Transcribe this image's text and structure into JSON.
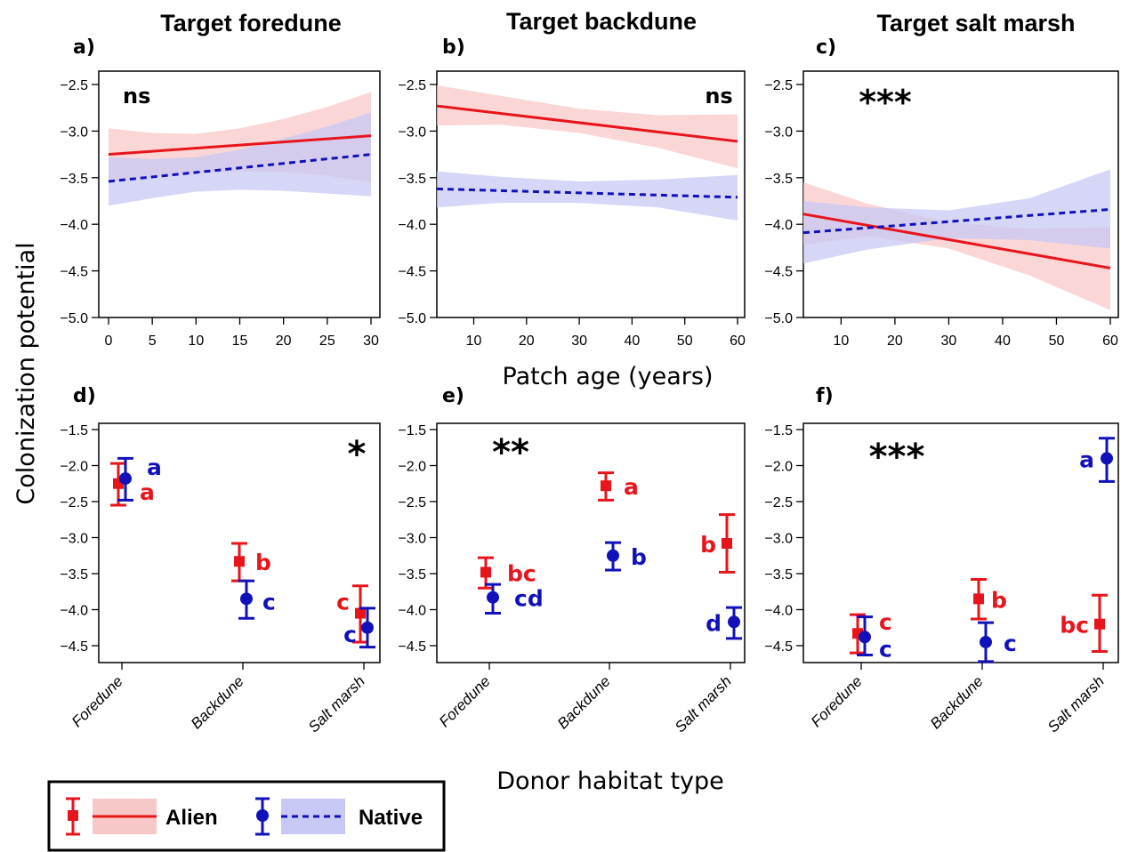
{
  "colors": {
    "alien": "#e8141b",
    "native": "#1111bb",
    "alien_band": "#f8c8c8",
    "native_band": "#c8c8f4"
  },
  "axis_labels": {
    "y": "Colonization potential",
    "x_top": "Patch age (years)",
    "x_bottom": "Donor habitat type"
  },
  "legend": {
    "alien": "Alien",
    "native": "Native"
  },
  "chart_data": [
    {
      "id": "a",
      "panel_label": "a)",
      "type": "line",
      "title": "Target foredune",
      "significance": "ns",
      "xlim": [
        0,
        30
      ],
      "ylim": [
        -5.0,
        -2.5
      ],
      "xticks": [
        0,
        5,
        10,
        15,
        20,
        25,
        30
      ],
      "yticks": [
        -2.5,
        -3.0,
        -3.5,
        -4.0,
        -4.5,
        -5.0
      ],
      "series": [
        {
          "name": "Alien",
          "x": [
            0,
            30
          ],
          "y": [
            -3.25,
            -3.05
          ],
          "band_x": [
            0,
            5,
            10,
            15,
            20,
            25,
            30
          ],
          "band_upper": [
            -2.97,
            -3.02,
            -3.03,
            -2.97,
            -2.87,
            -2.74,
            -2.58
          ],
          "band_lower": [
            -3.55,
            -3.5,
            -3.45,
            -3.43,
            -3.44,
            -3.48,
            -3.55
          ]
        },
        {
          "name": "Native",
          "x": [
            0,
            30
          ],
          "y": [
            -3.54,
            -3.25
          ],
          "band_x": [
            0,
            5,
            10,
            15,
            20,
            25,
            30
          ],
          "band_upper": [
            -3.28,
            -3.3,
            -3.28,
            -3.2,
            -3.08,
            -2.95,
            -2.8
          ],
          "band_lower": [
            -3.8,
            -3.72,
            -3.65,
            -3.63,
            -3.64,
            -3.67,
            -3.7
          ]
        }
      ]
    },
    {
      "id": "b",
      "panel_label": "b)",
      "type": "line",
      "title": "Target backdune",
      "significance": "ns",
      "xlim": [
        3,
        60
      ],
      "ylim": [
        -5.0,
        -2.5
      ],
      "xticks": [
        10,
        20,
        30,
        40,
        50,
        60
      ],
      "yticks": [
        -2.5,
        -3.0,
        -3.5,
        -4.0,
        -4.5,
        -5.0
      ],
      "series": [
        {
          "name": "Alien",
          "x": [
            3,
            60
          ],
          "y": [
            -2.73,
            -3.11
          ],
          "band_x": [
            3,
            15,
            30,
            45,
            60
          ],
          "band_upper": [
            -2.51,
            -2.62,
            -2.76,
            -2.83,
            -2.82
          ],
          "band_lower": [
            -2.94,
            -2.93,
            -3.02,
            -3.18,
            -3.4
          ]
        },
        {
          "name": "Native",
          "x": [
            3,
            60
          ],
          "y": [
            -3.62,
            -3.71
          ],
          "band_x": [
            3,
            15,
            30,
            45,
            60
          ],
          "band_upper": [
            -3.43,
            -3.49,
            -3.54,
            -3.52,
            -3.47
          ],
          "band_lower": [
            -3.82,
            -3.77,
            -3.77,
            -3.82,
            -3.96
          ]
        }
      ]
    },
    {
      "id": "c",
      "panel_label": "c)",
      "type": "line",
      "title": "Target salt marsh",
      "significance": "***",
      "xlim": [
        3,
        60
      ],
      "ylim": [
        -5.0,
        -2.5
      ],
      "xticks": [
        10,
        20,
        30,
        40,
        50,
        60
      ],
      "yticks": [
        -2.5,
        -3.0,
        -3.5,
        -4.0,
        -4.5,
        -5.0
      ],
      "series": [
        {
          "name": "Alien",
          "x": [
            3,
            60
          ],
          "y": [
            -3.89,
            -4.47
          ],
          "band_x": [
            3,
            15,
            30,
            45,
            60
          ],
          "band_upper": [
            -3.55,
            -3.78,
            -3.98,
            -4.05,
            -4.03
          ],
          "band_lower": [
            -4.22,
            -4.13,
            -4.26,
            -4.55,
            -4.92
          ]
        },
        {
          "name": "Native",
          "x": [
            3,
            60
          ],
          "y": [
            -4.09,
            -3.84
          ],
          "band_x": [
            3,
            15,
            30,
            45,
            60
          ],
          "band_upper": [
            -3.75,
            -3.82,
            -3.85,
            -3.72,
            -3.41
          ],
          "band_lower": [
            -4.42,
            -4.27,
            -4.15,
            -4.17,
            -4.26
          ]
        }
      ]
    },
    {
      "id": "d",
      "panel_label": "d)",
      "type": "scatter",
      "significance": "*",
      "categories": [
        "Foredune",
        "Backdune",
        "Salt marsh"
      ],
      "ylim": [
        -4.75,
        -1.5
      ],
      "yticks": [
        -1.5,
        -2.0,
        -2.5,
        -3.0,
        -3.5,
        -4.0,
        -4.5
      ],
      "series": [
        {
          "name": "Alien",
          "values": [
            -2.25,
            -3.33,
            -4.05
          ],
          "lower": [
            -2.55,
            -3.6,
            -4.45
          ],
          "upper": [
            -1.97,
            -3.08,
            -3.67
          ],
          "letters": [
            "a",
            "b",
            "c"
          ]
        },
        {
          "name": "Native",
          "values": [
            -2.18,
            -3.85,
            -4.25
          ],
          "lower": [
            -2.48,
            -4.12,
            -4.52
          ],
          "upper": [
            -1.9,
            -3.6,
            -3.98
          ],
          "letters": [
            "a",
            "c",
            "c"
          ]
        }
      ]
    },
    {
      "id": "e",
      "panel_label": "e)",
      "type": "scatter",
      "significance": "**",
      "categories": [
        "Foredune",
        "Backdune",
        "Salt marsh"
      ],
      "ylim": [
        -4.75,
        -1.5
      ],
      "yticks": [
        -1.5,
        -2.0,
        -2.5,
        -3.0,
        -3.5,
        -4.0,
        -4.5
      ],
      "series": [
        {
          "name": "Alien",
          "values": [
            -3.48,
            -2.28,
            -3.08
          ],
          "lower": [
            -3.7,
            -2.48,
            -3.48
          ],
          "upper": [
            -3.28,
            -2.1,
            -2.68
          ],
          "letters": [
            "bc",
            "a",
            "b"
          ]
        },
        {
          "name": "Native",
          "values": [
            -3.83,
            -3.25,
            -4.17
          ],
          "lower": [
            -4.05,
            -3.45,
            -4.4
          ],
          "upper": [
            -3.65,
            -3.07,
            -3.97
          ],
          "letters": [
            "cd",
            "b",
            "d"
          ]
        }
      ]
    },
    {
      "id": "f",
      "panel_label": "f)",
      "type": "scatter",
      "significance": "***",
      "categories": [
        "Foredune",
        "Backdune",
        "Salt marsh"
      ],
      "ylim": [
        -4.75,
        -1.5
      ],
      "yticks": [
        -1.5,
        -2.0,
        -2.5,
        -3.0,
        -3.5,
        -4.0,
        -4.5
      ],
      "series": [
        {
          "name": "Alien",
          "values": [
            -4.33,
            -3.85,
            -4.2
          ],
          "lower": [
            -4.6,
            -4.13,
            -4.58
          ],
          "upper": [
            -4.07,
            -3.58,
            -3.8
          ],
          "letters": [
            "c",
            "b",
            "bc"
          ]
        },
        {
          "name": "Native",
          "values": [
            -4.38,
            -4.45,
            -1.9
          ],
          "lower": [
            -4.63,
            -4.72,
            -2.22
          ],
          "upper": [
            -4.1,
            -4.18,
            -1.62
          ],
          "letters": [
            "c",
            "c",
            "a"
          ]
        }
      ]
    }
  ]
}
